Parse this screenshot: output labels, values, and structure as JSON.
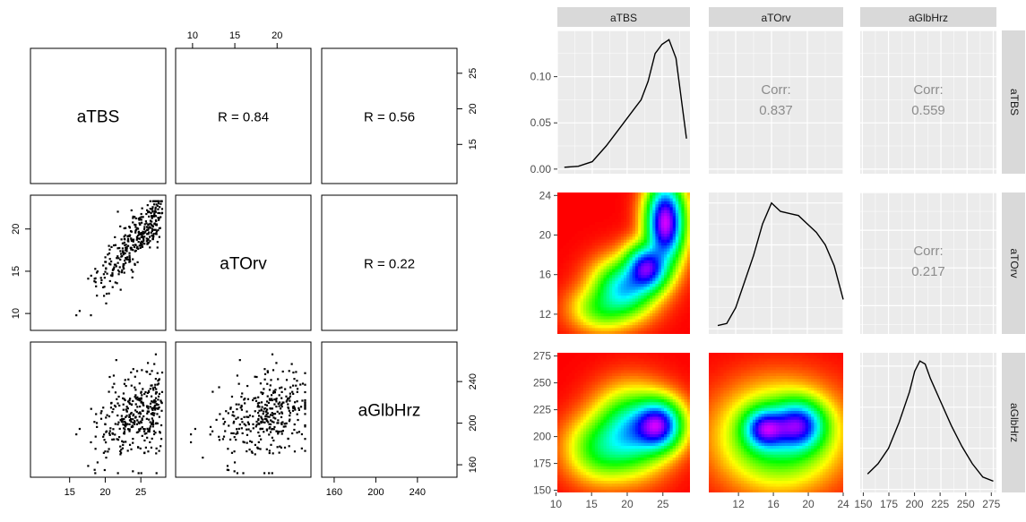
{
  "chart_data": [
    {
      "type": "scatter",
      "variables": [
        "aTBS",
        "aTOrv",
        "aGlbHrz"
      ],
      "correlations": [
        {
          "pair": [
            "aTBS",
            "aTOrv"
          ],
          "label": "R = 0.84",
          "value": 0.84
        },
        {
          "pair": [
            "aTBS",
            "aGlbHrz"
          ],
          "label": "R = 0.56",
          "value": 0.56
        },
        {
          "pair": [
            "aTOrv",
            "aGlbHrz"
          ],
          "label": "R = 0.22",
          "value": 0.22
        }
      ],
      "axes": {
        "aTBS": {
          "range": [
            9.5,
            28.5
          ],
          "ticks": [
            15,
            20,
            25
          ]
        },
        "aTOrv": {
          "range": [
            8,
            24
          ],
          "ticks": [
            10,
            15,
            20
          ]
        },
        "aGlbHrz": {
          "range": [
            148,
            278
          ],
          "ticks": [
            160,
            200,
            240
          ]
        }
      },
      "tick_labels": {
        "top_aTOrv": [
          "10",
          "15",
          "20"
        ],
        "right_aTBS": [
          "15",
          "20",
          "25"
        ],
        "left_aTOrv": [
          "10",
          "15",
          "20"
        ],
        "right_aGlbHrz": [
          "160",
          "200",
          "240"
        ],
        "bottom_aTBS": [
          "15",
          "20",
          "25"
        ],
        "bottom_aGlbHrz": [
          "160",
          "200",
          "240"
        ]
      },
      "grid": false,
      "point_color": "#000000"
    },
    {
      "type": "heatmap",
      "variables": [
        "aTBS",
        "aTOrv",
        "aGlbHrz"
      ],
      "strip_labels": [
        "aTBS",
        "aTOrv",
        "aGlbHrz"
      ],
      "correlations": [
        {
          "pair": [
            "aTBS",
            "aTOrv"
          ],
          "title": "Corr:",
          "value": "0.837"
        },
        {
          "pair": [
            "aTBS",
            "aGlbHrz"
          ],
          "title": "Corr:",
          "value": "0.559"
        },
        {
          "pair": [
            "aTOrv",
            "aGlbHrz"
          ],
          "title": "Corr:",
          "value": "0.217"
        }
      ],
      "density_1d": {
        "aTBS": {
          "x": [
            11,
            13,
            15,
            17,
            19,
            21,
            22,
            23,
            24,
            25,
            26,
            27,
            28.5
          ],
          "y": [
            0.002,
            0.003,
            0.008,
            0.025,
            0.045,
            0.065,
            0.075,
            0.095,
            0.125,
            0.135,
            0.14,
            0.12,
            0.033
          ]
        },
        "aTOrv": {
          "x": [
            10,
            11,
            12,
            13,
            14,
            15,
            16,
            17,
            18,
            19,
            20,
            21,
            22,
            23,
            24
          ],
          "y": [
            0.003,
            0.005,
            0.02,
            0.045,
            0.07,
            0.1,
            0.12,
            0.112,
            0.11,
            0.108,
            0.1,
            0.092,
            0.08,
            0.06,
            0.028
          ]
        },
        "aGlbHrz": {
          "x": [
            155,
            165,
            175,
            185,
            195,
            200,
            205,
            210,
            215,
            225,
            235,
            245,
            255,
            265,
            275
          ],
          "y": [
            0.0015,
            0.0025,
            0.004,
            0.0065,
            0.0095,
            0.0115,
            0.0125,
            0.0122,
            0.0108,
            0.0085,
            0.0062,
            0.0042,
            0.0025,
            0.0012,
            0.0008
          ]
        }
      },
      "density_2d": {
        "aTOrv_vs_aTBS": [
          {
            "x": 25.5,
            "y": 21,
            "sx": 1.4,
            "sy": 2.2,
            "w": 1.0
          },
          {
            "x": 23,
            "y": 16.5,
            "sx": 1.6,
            "sy": 1.3,
            "w": 0.8
          },
          {
            "x": 20,
            "y": 14.5,
            "sx": 2.2,
            "sy": 1.5,
            "w": 0.45
          },
          {
            "x": 17,
            "y": 12.5,
            "sx": 2.2,
            "sy": 1.2,
            "w": 0.15
          }
        ],
        "aGlbHrz_vs_aTBS": [
          {
            "x": 24.5,
            "y": 210,
            "sx": 1.8,
            "sy": 12,
            "w": 1.0
          },
          {
            "x": 21,
            "y": 205,
            "sx": 2.6,
            "sy": 18,
            "w": 0.55
          },
          {
            "x": 17,
            "y": 190,
            "sx": 2.5,
            "sy": 15,
            "w": 0.25
          }
        ],
        "aGlbHrz_vs_aTOrv": [
          {
            "x": 15.5,
            "y": 207,
            "sx": 1.3,
            "sy": 10,
            "w": 1.0
          },
          {
            "x": 19,
            "y": 210,
            "sx": 1.6,
            "sy": 12,
            "w": 1.0
          },
          {
            "x": 17,
            "y": 200,
            "sx": 3.2,
            "sy": 22,
            "w": 0.45
          }
        ]
      },
      "axes": {
        "aTBS": {
          "range": [
            10,
            29
          ],
          "ticks": [
            10,
            15,
            20,
            25
          ]
        },
        "aTOrv": {
          "range": [
            9,
            24
          ],
          "ticks": [
            12,
            16,
            20,
            24
          ]
        },
        "aGlbHrz": {
          "range": [
            148,
            278
          ],
          "ticks": [
            150,
            175,
            200,
            225,
            250,
            275
          ]
        },
        "density_aTBS": {
          "range": [
            -0.005,
            0.15
          ],
          "ticks": [
            0.0,
            0.05,
            0.1
          ]
        }
      },
      "tick_labels": {
        "y_density": [
          "0.00",
          "0.05",
          "0.10"
        ],
        "y_aTOrv": [
          "12",
          "16",
          "20",
          "24"
        ],
        "y_aGlbHrz": [
          "150",
          "175",
          "200",
          "225",
          "250",
          "275"
        ],
        "x_aTBS": [
          "10",
          "15",
          "20",
          "25"
        ],
        "x_aTOrv": [
          "12",
          "16",
          "20",
          "24"
        ],
        "x_aGlbHrz": [
          "150",
          "175",
          "200",
          "225",
          "250",
          "275"
        ]
      },
      "grid": true,
      "colors": {
        "panel_bg": "#ebebeb",
        "strip_bg": "#d9d9d9",
        "grid": "#ffffff",
        "corr_text": "#8c8c8c"
      }
    }
  ]
}
